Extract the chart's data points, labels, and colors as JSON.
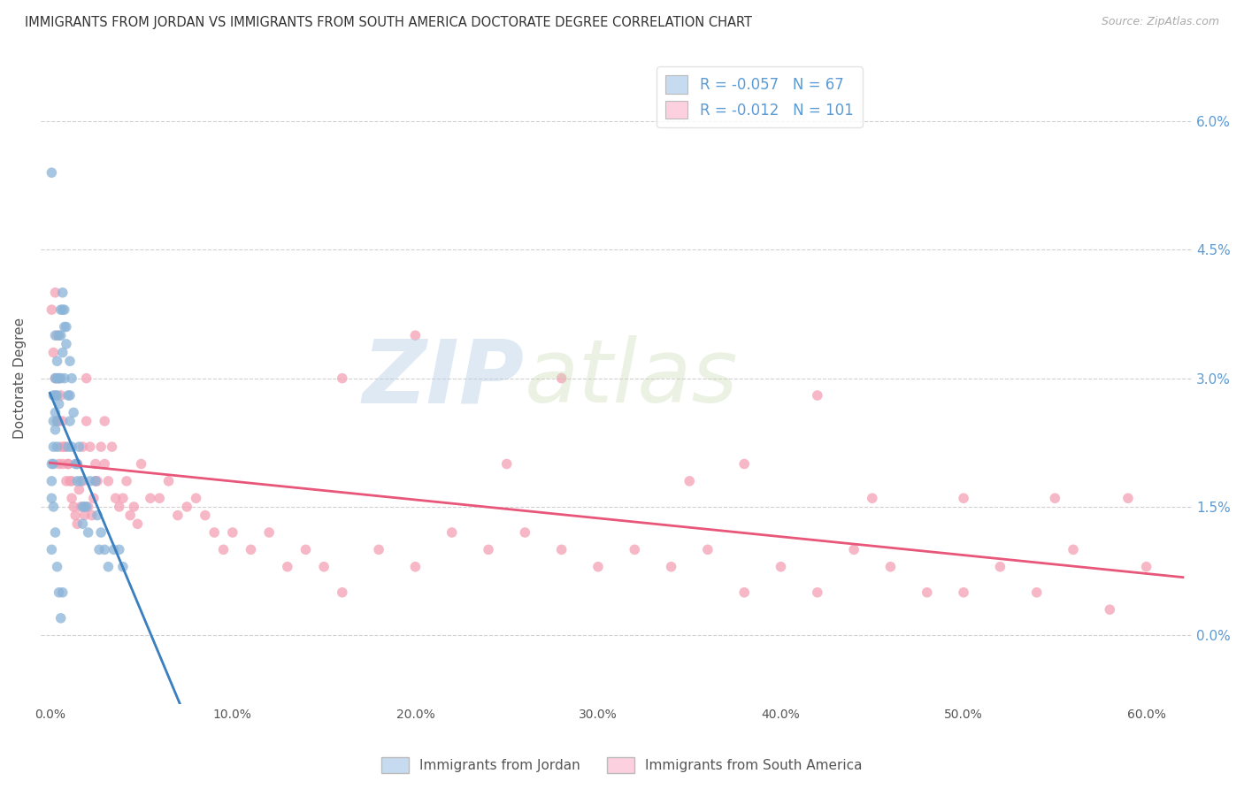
{
  "title": "IMMIGRANTS FROM JORDAN VS IMMIGRANTS FROM SOUTH AMERICA DOCTORATE DEGREE CORRELATION CHART",
  "source": "Source: ZipAtlas.com",
  "ylabel": "Doctorate Degree",
  "xlabel_ticks": [
    "0.0%",
    "10.0%",
    "20.0%",
    "30.0%",
    "40.0%",
    "50.0%",
    "60.0%"
  ],
  "xlabel_vals": [
    0.0,
    0.1,
    0.2,
    0.3,
    0.4,
    0.5,
    0.6
  ],
  "ylabel_ticks": [
    "0.0%",
    "1.5%",
    "3.0%",
    "4.5%",
    "6.0%"
  ],
  "ylabel_vals": [
    0.0,
    0.015,
    0.03,
    0.045,
    0.06
  ],
  "xlim": [
    -0.005,
    0.625
  ],
  "ylim": [
    -0.008,
    0.068
  ],
  "legend_r1": "-0.057",
  "legend_n1": "67",
  "legend_r2": "-0.012",
  "legend_n2": "101",
  "color_jordan": "#8ab4d8",
  "color_jordan_light": "#c6dbef",
  "color_south_america": "#f4a0b5",
  "color_south_america_light": "#fdd0df",
  "color_jordan_line": "#3a7fbf",
  "color_south_america_line": "#e8567a",
  "color_right_axis": "#5b9bd5",
  "background": "#ffffff",
  "grid_color": "#d0d0d0",
  "watermark_zip": "ZIP",
  "watermark_atlas": "atlas",
  "jordan_x": [
    0.001,
    0.001,
    0.001,
    0.002,
    0.002,
    0.002,
    0.002,
    0.003,
    0.003,
    0.003,
    0.003,
    0.003,
    0.004,
    0.004,
    0.004,
    0.004,
    0.004,
    0.005,
    0.005,
    0.005,
    0.006,
    0.006,
    0.006,
    0.007,
    0.007,
    0.007,
    0.008,
    0.008,
    0.008,
    0.009,
    0.009,
    0.01,
    0.01,
    0.011,
    0.011,
    0.011,
    0.012,
    0.012,
    0.013,
    0.014,
    0.015,
    0.015,
    0.016,
    0.017,
    0.018,
    0.018,
    0.019,
    0.02,
    0.021,
    0.022,
    0.025,
    0.026,
    0.027,
    0.028,
    0.03,
    0.032,
    0.035,
    0.038,
    0.04,
    0.001,
    0.001,
    0.002,
    0.003,
    0.004,
    0.005,
    0.006,
    0.007
  ],
  "jordan_y": [
    0.02,
    0.018,
    0.016,
    0.028,
    0.025,
    0.022,
    0.02,
    0.035,
    0.03,
    0.028,
    0.026,
    0.024,
    0.032,
    0.03,
    0.028,
    0.025,
    0.022,
    0.035,
    0.03,
    0.027,
    0.038,
    0.035,
    0.03,
    0.04,
    0.038,
    0.033,
    0.038,
    0.036,
    0.03,
    0.036,
    0.034,
    0.028,
    0.022,
    0.032,
    0.028,
    0.025,
    0.03,
    0.022,
    0.026,
    0.02,
    0.02,
    0.018,
    0.022,
    0.018,
    0.015,
    0.013,
    0.015,
    0.015,
    0.012,
    0.018,
    0.018,
    0.014,
    0.01,
    0.012,
    0.01,
    0.008,
    0.01,
    0.01,
    0.008,
    0.054,
    0.01,
    0.015,
    0.012,
    0.008,
    0.005,
    0.002,
    0.005
  ],
  "south_america_x": [
    0.001,
    0.002,
    0.003,
    0.004,
    0.005,
    0.005,
    0.006,
    0.007,
    0.008,
    0.009,
    0.01,
    0.011,
    0.012,
    0.013,
    0.014,
    0.015,
    0.016,
    0.017,
    0.018,
    0.019,
    0.02,
    0.021,
    0.022,
    0.023,
    0.024,
    0.025,
    0.026,
    0.028,
    0.03,
    0.032,
    0.034,
    0.036,
    0.038,
    0.04,
    0.042,
    0.044,
    0.046,
    0.048,
    0.05,
    0.055,
    0.06,
    0.065,
    0.07,
    0.075,
    0.08,
    0.085,
    0.09,
    0.095,
    0.1,
    0.11,
    0.12,
    0.13,
    0.14,
    0.15,
    0.16,
    0.18,
    0.2,
    0.22,
    0.24,
    0.26,
    0.28,
    0.3,
    0.32,
    0.34,
    0.36,
    0.38,
    0.4,
    0.42,
    0.44,
    0.46,
    0.48,
    0.5,
    0.52,
    0.54,
    0.56,
    0.58,
    0.6,
    0.003,
    0.004,
    0.005,
    0.006,
    0.007,
    0.008,
    0.01,
    0.012,
    0.015,
    0.018,
    0.02,
    0.025,
    0.03,
    0.2,
    0.35,
    0.45,
    0.5,
    0.28,
    0.38,
    0.16,
    0.42,
    0.25,
    0.55,
    0.59
  ],
  "south_america_y": [
    0.038,
    0.033,
    0.03,
    0.025,
    0.025,
    0.02,
    0.022,
    0.02,
    0.022,
    0.018,
    0.02,
    0.018,
    0.016,
    0.015,
    0.014,
    0.013,
    0.017,
    0.015,
    0.018,
    0.014,
    0.025,
    0.015,
    0.022,
    0.014,
    0.016,
    0.02,
    0.018,
    0.022,
    0.02,
    0.018,
    0.022,
    0.016,
    0.015,
    0.016,
    0.018,
    0.014,
    0.015,
    0.013,
    0.02,
    0.016,
    0.016,
    0.018,
    0.014,
    0.015,
    0.016,
    0.014,
    0.012,
    0.01,
    0.012,
    0.01,
    0.012,
    0.008,
    0.01,
    0.008,
    0.005,
    0.01,
    0.008,
    0.012,
    0.01,
    0.012,
    0.01,
    0.008,
    0.01,
    0.008,
    0.01,
    0.005,
    0.008,
    0.005,
    0.01,
    0.008,
    0.005,
    0.005,
    0.008,
    0.005,
    0.01,
    0.003,
    0.008,
    0.04,
    0.035,
    0.03,
    0.028,
    0.025,
    0.022,
    0.02,
    0.018,
    0.02,
    0.022,
    0.03,
    0.018,
    0.025,
    0.035,
    0.018,
    0.016,
    0.016,
    0.03,
    0.02,
    0.03,
    0.028,
    0.02,
    0.016,
    0.016
  ]
}
